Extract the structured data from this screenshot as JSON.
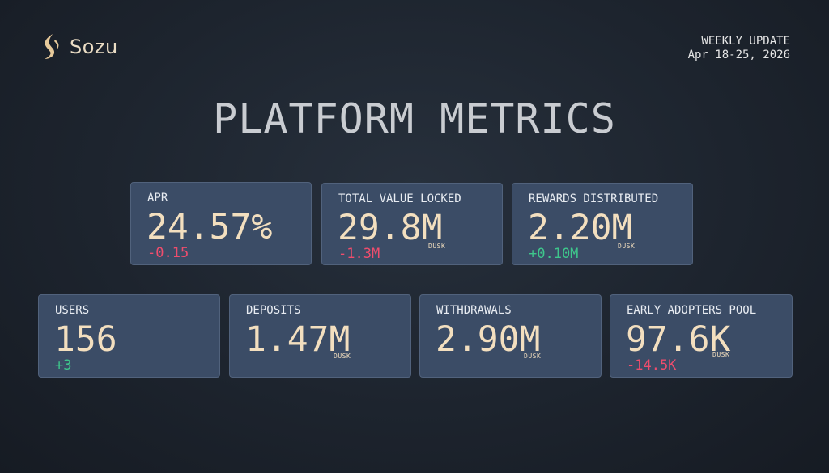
{
  "brand": {
    "name": "Sozu",
    "logo_icon": "sozu-logo-icon"
  },
  "update": {
    "label": "WEEKLY UPDATE",
    "date_range": "Apr 18-25, 2026"
  },
  "title": "PLATFORM METRICS",
  "colors": {
    "card_background": "#3b4c66",
    "value": "#f3dfbf",
    "negative": "#ef4d6d",
    "positive": "#3ec78c"
  },
  "metrics": [
    {
      "label": "APR",
      "value": "24.57%",
      "unit": "",
      "delta": "-0.15",
      "trend": "negative"
    },
    {
      "label": "TOTAL VALUE LOCKED",
      "value": "29.8M",
      "unit": "DUSK",
      "delta": "-1.3M",
      "trend": "negative"
    },
    {
      "label": "REWARDS DISTRIBUTED",
      "value": "2.20M",
      "unit": "DUSK",
      "delta": "+0.10M",
      "trend": "positive"
    },
    {
      "label": "USERS",
      "value": "156",
      "unit": "",
      "delta": "+3",
      "trend": "positive"
    },
    {
      "label": "DEPOSITS",
      "value": "1.47M",
      "unit": "DUSK",
      "delta": "",
      "trend": ""
    },
    {
      "label": "WITHDRAWALS",
      "value": "2.90M",
      "unit": "DUSK",
      "delta": "",
      "trend": ""
    },
    {
      "label": "EARLY ADOPTERS POOL",
      "value": "97.6K",
      "unit": "DUSK",
      "delta": "-14.5K",
      "trend": "negative"
    }
  ]
}
